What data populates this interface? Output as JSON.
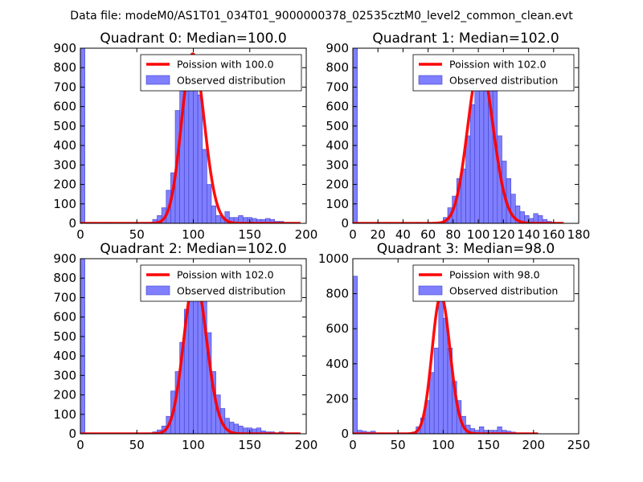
{
  "suptitle": "Data file: modeM0/AS1T01_034T01_9000000378_02535cztM0_level2_common_clean.evt",
  "colors": {
    "bar_fill": "#7f7fff",
    "bar_edge": "#3f3fcc",
    "model_line": "#ff0000",
    "axes": "#000000",
    "background": "#ffffff"
  },
  "chart_data": [
    {
      "type": "bar+line",
      "title": "Quadrant 0: Median=100.0",
      "median": 100.0,
      "xlim": [
        0,
        200
      ],
      "ylim": [
        0,
        900
      ],
      "xticks": [
        0,
        50,
        100,
        150,
        200
      ],
      "yticks": [
        0,
        100,
        200,
        300,
        400,
        500,
        600,
        700,
        800,
        900
      ],
      "legend": {
        "location": "top-right",
        "line_label": "Poission with 100.0",
        "bar_label": "Observed distribution"
      },
      "bin_width": 4,
      "bins": [
        {
          "x": 0,
          "y": 900
        },
        {
          "x": 4,
          "y": 4
        },
        {
          "x": 8,
          "y": 4
        },
        {
          "x": 12,
          "y": 4
        },
        {
          "x": 16,
          "y": 2
        },
        {
          "x": 20,
          "y": 4
        },
        {
          "x": 24,
          "y": 3
        },
        {
          "x": 28,
          "y": 2
        },
        {
          "x": 36,
          "y": 2
        },
        {
          "x": 40,
          "y": 3
        },
        {
          "x": 44,
          "y": 2
        },
        {
          "x": 48,
          "y": 3
        },
        {
          "x": 56,
          "y": 5
        },
        {
          "x": 60,
          "y": 5
        },
        {
          "x": 64,
          "y": 20
        },
        {
          "x": 68,
          "y": 40
        },
        {
          "x": 72,
          "y": 80
        },
        {
          "x": 76,
          "y": 170
        },
        {
          "x": 80,
          "y": 260
        },
        {
          "x": 84,
          "y": 580
        },
        {
          "x": 88,
          "y": 720
        },
        {
          "x": 92,
          "y": 790
        },
        {
          "x": 96,
          "y": 840
        },
        {
          "x": 100,
          "y": 800
        },
        {
          "x": 104,
          "y": 660
        },
        {
          "x": 108,
          "y": 380
        },
        {
          "x": 112,
          "y": 200
        },
        {
          "x": 116,
          "y": 90
        },
        {
          "x": 120,
          "y": 40
        },
        {
          "x": 124,
          "y": 30
        },
        {
          "x": 128,
          "y": 60
        },
        {
          "x": 132,
          "y": 30
        },
        {
          "x": 136,
          "y": 30
        },
        {
          "x": 140,
          "y": 40
        },
        {
          "x": 144,
          "y": 30
        },
        {
          "x": 148,
          "y": 30
        },
        {
          "x": 152,
          "y": 25
        },
        {
          "x": 156,
          "y": 20
        },
        {
          "x": 160,
          "y": 20
        },
        {
          "x": 164,
          "y": 25
        },
        {
          "x": 168,
          "y": 20
        },
        {
          "x": 172,
          "y": 10
        },
        {
          "x": 176,
          "y": 10
        },
        {
          "x": 180,
          "y": 5
        },
        {
          "x": 184,
          "y": 5
        },
        {
          "x": 188,
          "y": 5
        }
      ],
      "model": {
        "peak": 870,
        "lambda": 100.0,
        "x_range": [
          0,
          195
        ]
      }
    },
    {
      "type": "bar+line",
      "title": "Quadrant 1: Median=102.0",
      "median": 102.0,
      "xlim": [
        0,
        180
      ],
      "ylim": [
        0,
        900
      ],
      "xticks": [
        0,
        20,
        40,
        60,
        80,
        100,
        120,
        140,
        160,
        180
      ],
      "yticks": [
        0,
        100,
        200,
        300,
        400,
        500,
        600,
        700,
        800,
        900
      ],
      "legend": {
        "location": "top-right",
        "line_label": "Poission with 102.0",
        "bar_label": "Observed distribution"
      },
      "bin_width": 3.6,
      "bins": [
        {
          "x": 0,
          "y": 900
        },
        {
          "x": 3.6,
          "y": 3
        },
        {
          "x": 7.2,
          "y": 3
        },
        {
          "x": 10.8,
          "y": 2
        },
        {
          "x": 18,
          "y": 2
        },
        {
          "x": 28.8,
          "y": 2
        },
        {
          "x": 39.6,
          "y": 2
        },
        {
          "x": 50.4,
          "y": 3
        },
        {
          "x": 61.2,
          "y": 2
        },
        {
          "x": 68.4,
          "y": 4
        },
        {
          "x": 72,
          "y": 30
        },
        {
          "x": 75.6,
          "y": 80
        },
        {
          "x": 79.2,
          "y": 140
        },
        {
          "x": 82.8,
          "y": 230
        },
        {
          "x": 86.4,
          "y": 280
        },
        {
          "x": 90,
          "y": 450
        },
        {
          "x": 93.6,
          "y": 610
        },
        {
          "x": 97.2,
          "y": 840
        },
        {
          "x": 100.8,
          "y": 780
        },
        {
          "x": 104.4,
          "y": 680
        },
        {
          "x": 108,
          "y": 820
        },
        {
          "x": 111.6,
          "y": 680
        },
        {
          "x": 115.2,
          "y": 450
        },
        {
          "x": 118.8,
          "y": 320
        },
        {
          "x": 122.4,
          "y": 230
        },
        {
          "x": 126,
          "y": 150
        },
        {
          "x": 129.6,
          "y": 90
        },
        {
          "x": 133.2,
          "y": 60
        },
        {
          "x": 136.8,
          "y": 40
        },
        {
          "x": 140.4,
          "y": 25
        },
        {
          "x": 144,
          "y": 50
        },
        {
          "x": 147.6,
          "y": 40
        },
        {
          "x": 151.2,
          "y": 20
        },
        {
          "x": 154.8,
          "y": 10
        },
        {
          "x": 158.4,
          "y": 5
        },
        {
          "x": 162,
          "y": 5
        }
      ],
      "model": {
        "peak": 820,
        "lambda": 102.0,
        "x_range": [
          0,
          168
        ]
      }
    },
    {
      "type": "bar+line",
      "title": "Quadrant 2: Median=102.0",
      "median": 102.0,
      "xlim": [
        0,
        200
      ],
      "ylim": [
        0,
        900
      ],
      "xticks": [
        0,
        50,
        100,
        150,
        200
      ],
      "yticks": [
        0,
        100,
        200,
        300,
        400,
        500,
        600,
        700,
        800,
        900
      ],
      "legend": {
        "location": "top-right",
        "line_label": "Poission with 102.0",
        "bar_label": "Observed distribution"
      },
      "bin_width": 4,
      "bins": [
        {
          "x": 0,
          "y": 900
        },
        {
          "x": 4,
          "y": 3
        },
        {
          "x": 8,
          "y": 3
        },
        {
          "x": 12,
          "y": 2
        },
        {
          "x": 20,
          "y": 2
        },
        {
          "x": 32,
          "y": 2
        },
        {
          "x": 44,
          "y": 2
        },
        {
          "x": 56,
          "y": 3
        },
        {
          "x": 60,
          "y": 5
        },
        {
          "x": 64,
          "y": 10
        },
        {
          "x": 68,
          "y": 20
        },
        {
          "x": 72,
          "y": 40
        },
        {
          "x": 76,
          "y": 90
        },
        {
          "x": 80,
          "y": 220
        },
        {
          "x": 84,
          "y": 320
        },
        {
          "x": 88,
          "y": 470
        },
        {
          "x": 92,
          "y": 640
        },
        {
          "x": 96,
          "y": 760
        },
        {
          "x": 100,
          "y": 800
        },
        {
          "x": 104,
          "y": 770
        },
        {
          "x": 108,
          "y": 700
        },
        {
          "x": 112,
          "y": 520
        },
        {
          "x": 116,
          "y": 320
        },
        {
          "x": 120,
          "y": 200
        },
        {
          "x": 124,
          "y": 130
        },
        {
          "x": 128,
          "y": 80
        },
        {
          "x": 132,
          "y": 60
        },
        {
          "x": 136,
          "y": 50
        },
        {
          "x": 140,
          "y": 40
        },
        {
          "x": 144,
          "y": 30
        },
        {
          "x": 148,
          "y": 30
        },
        {
          "x": 152,
          "y": 25
        },
        {
          "x": 156,
          "y": 30
        },
        {
          "x": 160,
          "y": 15
        },
        {
          "x": 164,
          "y": 10
        },
        {
          "x": 168,
          "y": 10
        },
        {
          "x": 172,
          "y": 5
        },
        {
          "x": 176,
          "y": 10
        },
        {
          "x": 180,
          "y": 5
        },
        {
          "x": 184,
          "y": 5
        },
        {
          "x": 188,
          "y": 5
        }
      ],
      "model": {
        "peak": 800,
        "lambda": 102.0,
        "x_range": [
          0,
          195
        ]
      }
    },
    {
      "type": "bar+line",
      "title": "Quadrant 3: Median=98.0",
      "median": 98.0,
      "xlim": [
        0,
        250
      ],
      "ylim": [
        0,
        1000
      ],
      "xticks": [
        0,
        50,
        100,
        150,
        200,
        250
      ],
      "yticks": [
        0,
        200,
        400,
        600,
        800,
        1000
      ],
      "legend": {
        "location": "top-right",
        "line_label": "Poission with 98.0",
        "bar_label": "Observed distribution"
      },
      "bin_width": 5,
      "bins": [
        {
          "x": 0,
          "y": 900
        },
        {
          "x": 5,
          "y": 20
        },
        {
          "x": 10,
          "y": 15
        },
        {
          "x": 15,
          "y": 10
        },
        {
          "x": 20,
          "y": 15
        },
        {
          "x": 25,
          "y": 5
        },
        {
          "x": 30,
          "y": 5
        },
        {
          "x": 35,
          "y": 3
        },
        {
          "x": 40,
          "y": 3
        },
        {
          "x": 45,
          "y": 5
        },
        {
          "x": 50,
          "y": 3
        },
        {
          "x": 55,
          "y": 3
        },
        {
          "x": 60,
          "y": 5
        },
        {
          "x": 65,
          "y": 10
        },
        {
          "x": 70,
          "y": 40
        },
        {
          "x": 75,
          "y": 90
        },
        {
          "x": 80,
          "y": 190
        },
        {
          "x": 85,
          "y": 350
        },
        {
          "x": 90,
          "y": 490
        },
        {
          "x": 95,
          "y": 790
        },
        {
          "x": 100,
          "y": 660
        },
        {
          "x": 105,
          "y": 490
        },
        {
          "x": 110,
          "y": 300
        },
        {
          "x": 115,
          "y": 190
        },
        {
          "x": 120,
          "y": 100
        },
        {
          "x": 125,
          "y": 50
        },
        {
          "x": 130,
          "y": 30
        },
        {
          "x": 135,
          "y": 20
        },
        {
          "x": 140,
          "y": 40
        },
        {
          "x": 145,
          "y": 20
        },
        {
          "x": 150,
          "y": 20
        },
        {
          "x": 155,
          "y": 20
        },
        {
          "x": 160,
          "y": 40
        },
        {
          "x": 165,
          "y": 20
        },
        {
          "x": 170,
          "y": 15
        },
        {
          "x": 175,
          "y": 10
        },
        {
          "x": 180,
          "y": 5
        },
        {
          "x": 185,
          "y": 5
        },
        {
          "x": 190,
          "y": 5
        }
      ],
      "model": {
        "peak": 790,
        "lambda": 98.0,
        "x_range": [
          0,
          205
        ]
      }
    }
  ]
}
